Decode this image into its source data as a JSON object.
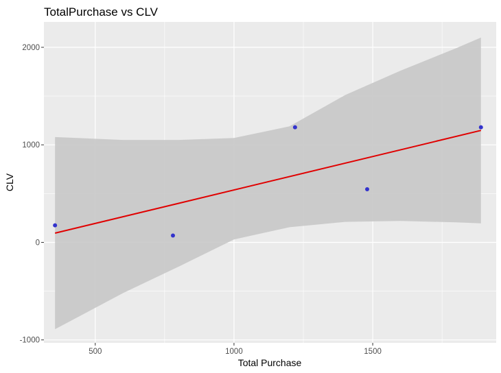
{
  "chart_data": {
    "type": "scatter",
    "title": "TotalPurchase vs CLV",
    "xlabel": "Total Purchase",
    "ylabel": "CLV",
    "xlim": [
      315,
      1945
    ],
    "ylim": [
      -1030,
      2260
    ],
    "x_ticks": [
      500,
      1000,
      1500
    ],
    "y_ticks": [
      -1000,
      0,
      1000,
      2000
    ],
    "x_minor": [
      750,
      1250,
      1750
    ],
    "y_minor": [
      -500,
      500,
      1500
    ],
    "grid": true,
    "points": [
      {
        "x": 355,
        "y": 175
      },
      {
        "x": 780,
        "y": 70
      },
      {
        "x": 1220,
        "y": 1180
      },
      {
        "x": 1480,
        "y": 545
      },
      {
        "x": 1890,
        "y": 1180
      }
    ],
    "fit": {
      "method": "linear",
      "x": [
        355,
        1890
      ],
      "y": [
        95,
        1148
      ]
    },
    "confidence_band": {
      "x": [
        355,
        600,
        800,
        1000,
        1200,
        1400,
        1600,
        1800,
        1890
      ],
      "lower": [
        -890,
        -520,
        -250,
        30,
        155,
        210,
        220,
        205,
        195
      ],
      "upper": [
        1080,
        1050,
        1050,
        1070,
        1190,
        1510,
        1760,
        1990,
        2100
      ]
    },
    "colors": {
      "panel": "#EBEBEB",
      "grid": "#FFFFFF",
      "points": "#3333CC",
      "fit_line": "#E00000",
      "band": "#C8C8C8"
    }
  }
}
